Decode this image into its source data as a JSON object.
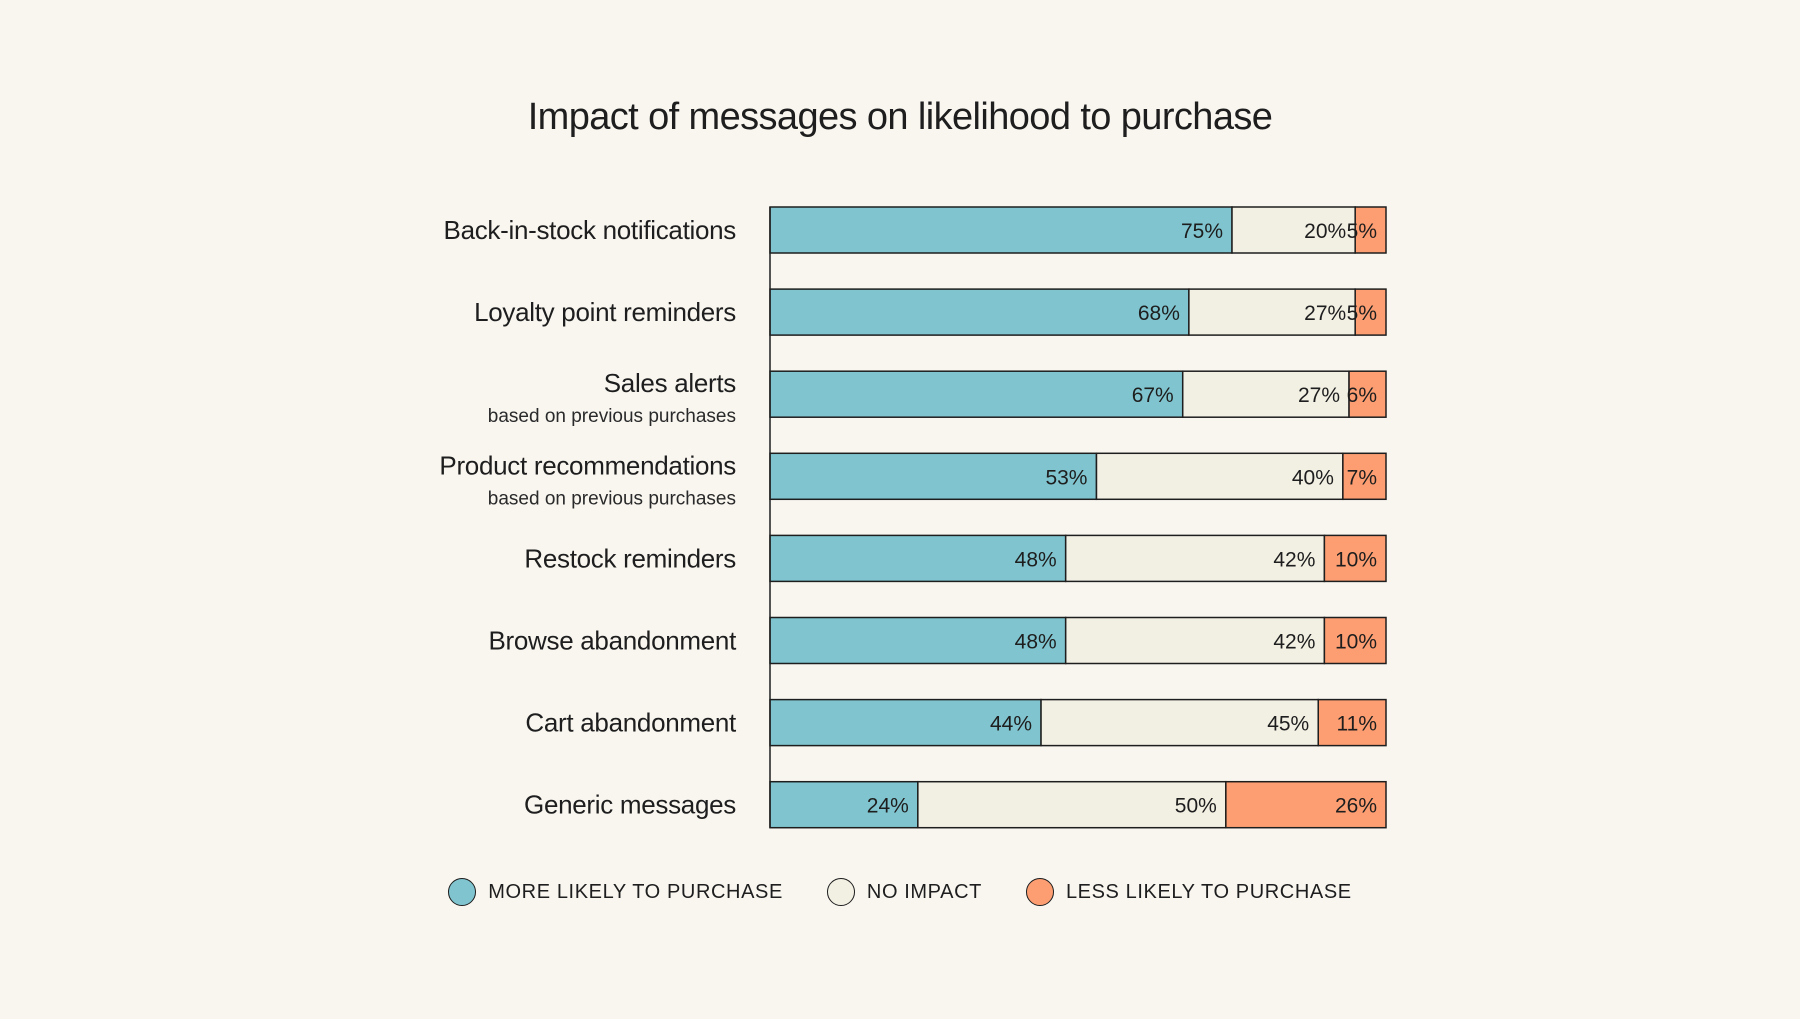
{
  "title": "Impact of messages on likelihood to purchase",
  "colors": {
    "background": "#f9f6f0",
    "more_likely": "#7fc4cf",
    "no_impact": "#f2efe3",
    "less_likely": "#fd9e72",
    "outline": "#1e1e1e"
  },
  "legend": [
    {
      "label": "MORE LIKELY TO PURCHASE",
      "color": "#7fc4cf"
    },
    {
      "label": "NO IMPACT",
      "color": "#f2efe3"
    },
    {
      "label": "LESS LIKELY TO PURCHASE",
      "color": "#fd9e72"
    }
  ],
  "chart_data": {
    "type": "bar",
    "orientation": "horizontal",
    "stacked": true,
    "normalized": true,
    "title": "Impact of messages on likelihood to purchase",
    "categories": [
      {
        "label": "Back-in-stock notifications",
        "sublabel": ""
      },
      {
        "label": "Loyalty point reminders",
        "sublabel": ""
      },
      {
        "label": "Sales alerts",
        "sublabel": "based on previous purchases"
      },
      {
        "label": "Product recommendations",
        "sublabel": "based on previous purchases"
      },
      {
        "label": "Restock reminders",
        "sublabel": ""
      },
      {
        "label": "Browse abandonment",
        "sublabel": ""
      },
      {
        "label": "Cart abandonment",
        "sublabel": ""
      },
      {
        "label": "Generic messages",
        "sublabel": ""
      }
    ],
    "series": [
      {
        "name": "MORE LIKELY TO PURCHASE",
        "color": "#7fc4cf",
        "values": [
          75,
          68,
          67,
          53,
          48,
          48,
          44,
          24
        ]
      },
      {
        "name": "NO IMPACT",
        "color": "#f2efe3",
        "values": [
          20,
          27,
          27,
          40,
          42,
          42,
          45,
          50
        ]
      },
      {
        "name": "LESS LIKELY TO PURCHASE",
        "color": "#fd9e72",
        "values": [
          5,
          5,
          6,
          7,
          10,
          10,
          11,
          26
        ]
      }
    ],
    "value_suffix": "%",
    "xlim": [
      0,
      100
    ],
    "grid": false,
    "legend_position": "bottom"
  }
}
